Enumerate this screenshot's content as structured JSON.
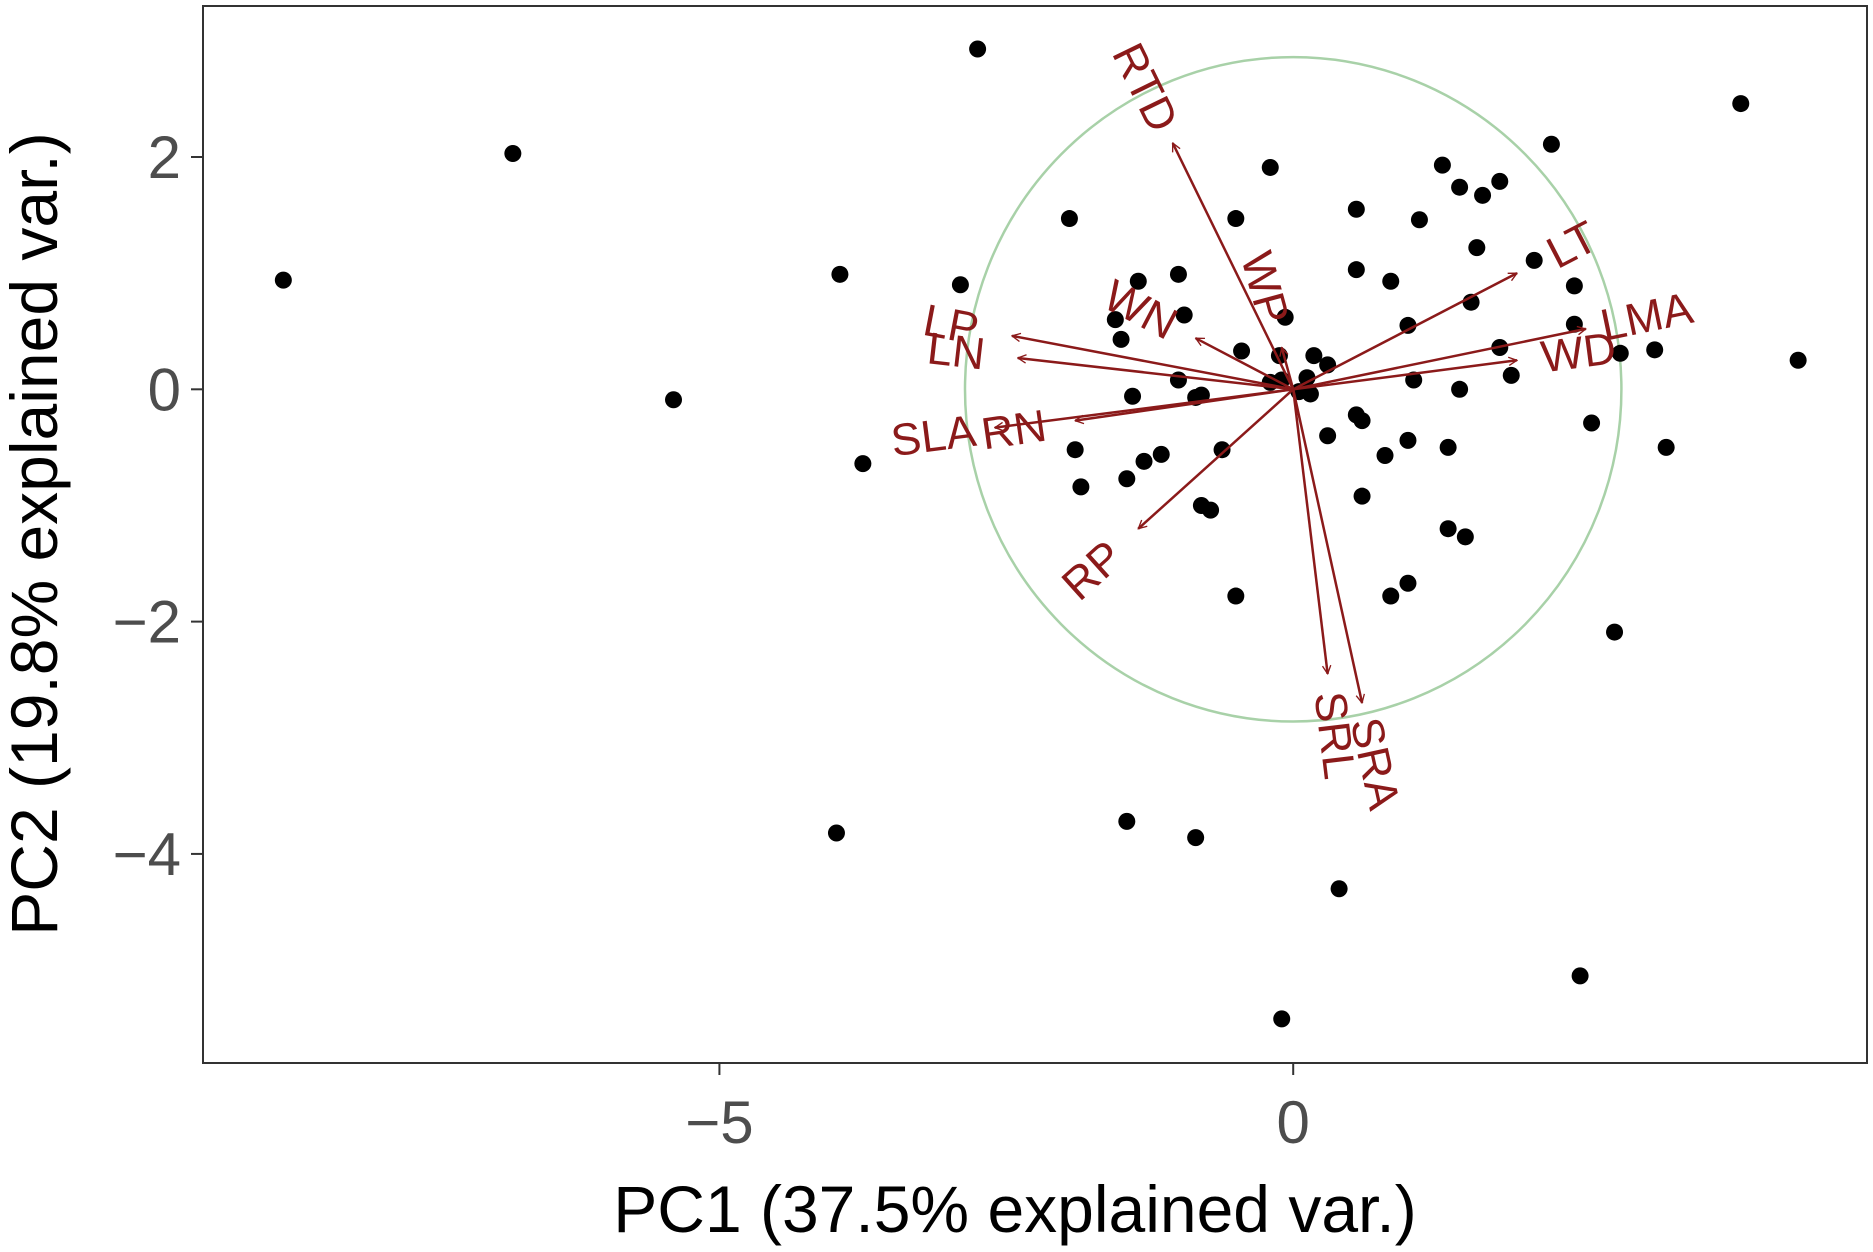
{
  "chart_data": {
    "type": "scatter",
    "subtype": "pca-biplot",
    "xlabel": "PC1 (37.5% explained var.)",
    "ylabel": "PC2 (19.8% explained var.)",
    "xlim": [
      -9.5,
      5.0
    ],
    "ylim": [
      -5.8,
      3.3
    ],
    "x_ticks": [
      {
        "value": -5,
        "label": "−5"
      },
      {
        "value": 0,
        "label": "0"
      }
    ],
    "y_ticks": [
      {
        "value": 2,
        "label": "2"
      },
      {
        "value": 0,
        "label": "0"
      },
      {
        "value": -2,
        "label": "−2"
      },
      {
        "value": -4,
        "label": "−4"
      }
    ],
    "grid": false,
    "legend": "none",
    "colors": {
      "points": "#000000",
      "loadings": "#8b1a1a",
      "circle": "#a8d1a8",
      "frame": "#333333"
    },
    "correlation_circle": {
      "center": [
        0,
        0
      ],
      "radius": 2.86
    },
    "points": [
      {
        "x": -8.8,
        "y": 0.94
      },
      {
        "x": -6.8,
        "y": 2.03
      },
      {
        "x": -5.4,
        "y": -0.09
      },
      {
        "x": -2.75,
        "y": 2.93
      },
      {
        "x": -3.95,
        "y": 0.99
      },
      {
        "x": -3.75,
        "y": -0.64
      },
      {
        "x": -3.98,
        "y": -3.82
      },
      {
        "x": -2.9,
        "y": 0.9
      },
      {
        "x": -1.95,
        "y": 1.47
      },
      {
        "x": -1.9,
        "y": -0.52
      },
      {
        "x": -1.85,
        "y": -0.84
      },
      {
        "x": -1.55,
        "y": 0.6
      },
      {
        "x": -1.5,
        "y": 0.43
      },
      {
        "x": -1.35,
        "y": 0.93
      },
      {
        "x": -1.4,
        "y": -0.06
      },
      {
        "x": -1.45,
        "y": -0.77
      },
      {
        "x": -1.3,
        "y": -0.62
      },
      {
        "x": -1.15,
        "y": -0.56
      },
      {
        "x": -1.0,
        "y": 0.99
      },
      {
        "x": -0.95,
        "y": 0.64
      },
      {
        "x": -1.0,
        "y": 0.08
      },
      {
        "x": -0.85,
        "y": -0.07
      },
      {
        "x": -0.8,
        "y": -0.05
      },
      {
        "x": -0.8,
        "y": -1.0
      },
      {
        "x": -0.72,
        "y": -1.04
      },
      {
        "x": -0.62,
        "y": -0.52
      },
      {
        "x": -0.5,
        "y": 1.47
      },
      {
        "x": -0.45,
        "y": 0.33
      },
      {
        "x": -0.2,
        "y": 0.06
      },
      {
        "x": -0.2,
        "y": 1.91
      },
      {
        "x": -0.12,
        "y": 0.29
      },
      {
        "x": -0.07,
        "y": 0.62
      },
      {
        "x": -0.1,
        "y": 0.08
      },
      {
        "x": 0.05,
        "y": -0.02
      },
      {
        "x": 0.12,
        "y": 0.1
      },
      {
        "x": 0.18,
        "y": 0.29
      },
      {
        "x": 0.15,
        "y": -0.04
      },
      {
        "x": 0.3,
        "y": 0.21
      },
      {
        "x": -0.5,
        "y": -1.78
      },
      {
        "x": -1.45,
        "y": -3.72
      },
      {
        "x": -0.85,
        "y": -3.86
      },
      {
        "x": 0.4,
        "y": -4.3
      },
      {
        "x": -0.1,
        "y": -5.42
      },
      {
        "x": 0.55,
        "y": 1.55
      },
      {
        "x": 0.55,
        "y": 1.03
      },
      {
        "x": 0.85,
        "y": 0.93
      },
      {
        "x": 0.55,
        "y": -0.22
      },
      {
        "x": 0.3,
        "y": -0.4
      },
      {
        "x": 0.6,
        "y": -0.27
      },
      {
        "x": 0.8,
        "y": -0.57
      },
      {
        "x": 0.6,
        "y": -0.92
      },
      {
        "x": 1.0,
        "y": 0.55
      },
      {
        "x": 1.05,
        "y": 0.08
      },
      {
        "x": 1.0,
        "y": -0.44
      },
      {
        "x": 0.85,
        "y": -1.78
      },
      {
        "x": 1.0,
        "y": -1.67
      },
      {
        "x": 1.1,
        "y": 1.46
      },
      {
        "x": 1.3,
        "y": 1.93
      },
      {
        "x": 1.45,
        "y": 1.74
      },
      {
        "x": 1.65,
        "y": 1.67
      },
      {
        "x": 1.8,
        "y": 1.79
      },
      {
        "x": 1.6,
        "y": 1.22
      },
      {
        "x": 1.55,
        "y": 0.75
      },
      {
        "x": 1.45,
        "y": 0.0
      },
      {
        "x": 1.35,
        "y": -0.5
      },
      {
        "x": 1.35,
        "y": -1.2
      },
      {
        "x": 1.5,
        "y": -1.27
      },
      {
        "x": 1.8,
        "y": 0.36
      },
      {
        "x": 1.9,
        "y": 0.12
      },
      {
        "x": 2.25,
        "y": 2.11
      },
      {
        "x": 2.1,
        "y": 1.11
      },
      {
        "x": 2.45,
        "y": 0.89
      },
      {
        "x": 2.45,
        "y": 0.56
      },
      {
        "x": 2.85,
        "y": 0.31
      },
      {
        "x": 2.6,
        "y": -0.29
      },
      {
        "x": 2.8,
        "y": -2.09
      },
      {
        "x": 2.5,
        "y": -5.05
      },
      {
        "x": 3.15,
        "y": 0.34
      },
      {
        "x": 3.25,
        "y": -0.5
      },
      {
        "x": 3.9,
        "y": 2.46
      },
      {
        "x": 4.4,
        "y": 0.25
      }
    ],
    "loadings": [
      {
        "label": "RTD",
        "x": -1.05,
        "y": 2.12
      },
      {
        "label": "LP",
        "x": -2.45,
        "y": 0.46
      },
      {
        "label": "LN",
        "x": -2.4,
        "y": 0.27
      },
      {
        "label": "SLA",
        "x": -2.6,
        "y": -0.33
      },
      {
        "label": "RN",
        "x": -1.9,
        "y": -0.27
      },
      {
        "label": "RP",
        "x": -1.35,
        "y": -1.2
      },
      {
        "label": "WN",
        "x": -0.85,
        "y": 0.44
      },
      {
        "label": "WP",
        "x": -0.1,
        "y": 0.36
      },
      {
        "label": "LT",
        "x": 1.95,
        "y": 1.0
      },
      {
        "label": "LMA",
        "x": 2.55,
        "y": 0.52
      },
      {
        "label": "WD",
        "x": 1.95,
        "y": 0.25
      },
      {
        "label": "SRL",
        "x": 0.3,
        "y": -2.45
      },
      {
        "label": "SRA",
        "x": 0.6,
        "y": -2.7
      }
    ]
  }
}
